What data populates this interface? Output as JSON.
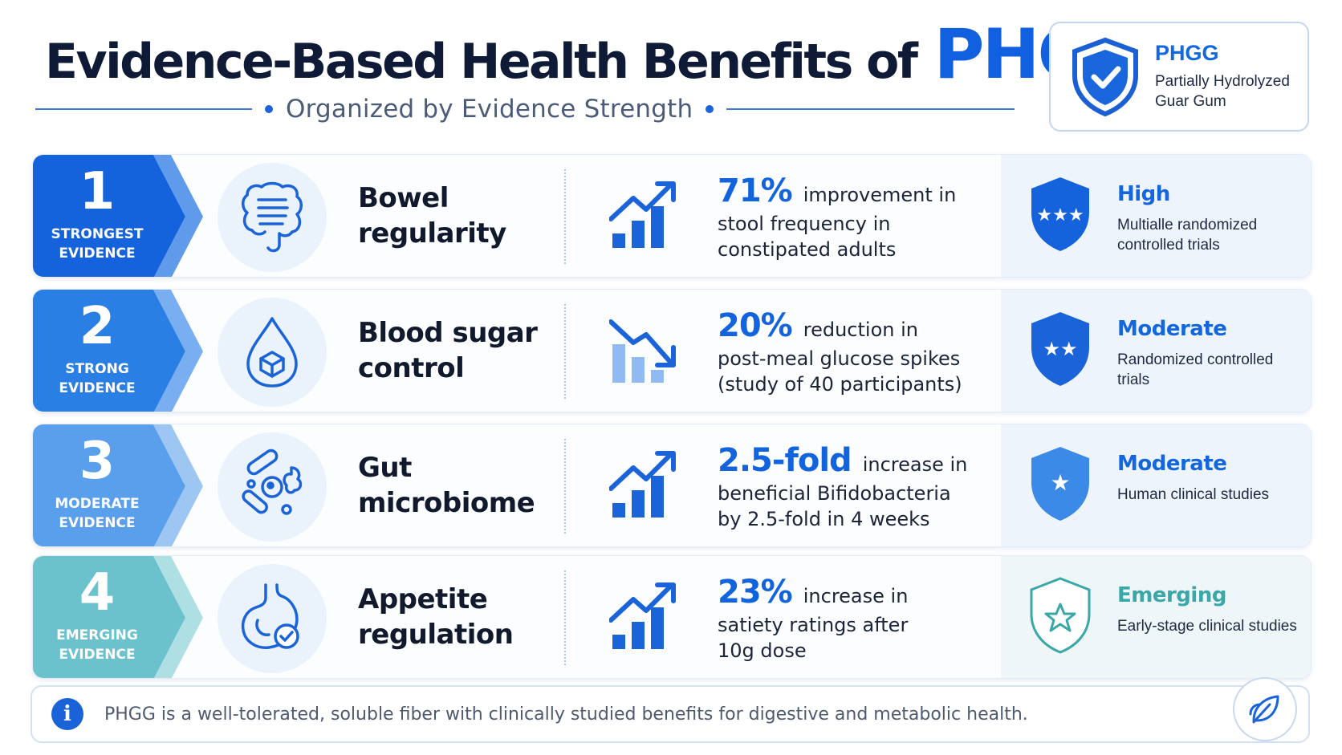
{
  "header": {
    "title_main": "Evidence-Based Health Benefits of",
    "title_accent": "PHGG",
    "subtitle": "Organized by Evidence Strength"
  },
  "badge": {
    "title": "PHGG",
    "subtitle": "Partially Hydrolyzed Guar Gum",
    "icon": "shield-check-icon"
  },
  "rows": [
    {
      "rank": "1",
      "rank_label": "Strongest evidence",
      "color": "#1463dd",
      "icon": "intestine-icon",
      "benefit": "Bowel regularity",
      "trend": "up",
      "stat_big": "71%",
      "stat_rest": "improvement in",
      "stat_body": "stool frequency in\nconstipated adults",
      "level": "High",
      "level_desc": "Multialle randomized controlled trials",
      "stars": 3
    },
    {
      "rank": "2",
      "rank_label": "Strong evidence",
      "color": "#2a7fe4",
      "icon": "glucose-drop-icon",
      "benefit": "Blood sugar control",
      "trend": "down",
      "stat_big": "20%",
      "stat_rest": "reduction in",
      "stat_body": "post-meal glucose spikes\n(study of 40 participants)",
      "level": "Moderate",
      "level_desc": "Randomized controlled trials",
      "stars": 2
    },
    {
      "rank": "3",
      "rank_label": "Moderate evidence",
      "color": "#5a9fec",
      "icon": "microbes-icon",
      "benefit": "Gut microbiome",
      "trend": "up",
      "stat_big": "2.5-fold",
      "stat_rest": "increase in",
      "stat_body": "beneficial Bifidobacteria\nby 2.5-fold in 4 weeks",
      "level": "Moderate",
      "level_desc": "Human clinical studies",
      "stars": 1
    },
    {
      "rank": "4",
      "rank_label": "Emerging evidence",
      "color": "#6cc2cc",
      "icon": "stomach-check-icon",
      "benefit": "Appetite regulation",
      "trend": "up",
      "stat_big": "23%",
      "stat_rest": "increase in",
      "stat_body": "satiety ratings after\n10g dose",
      "level": "Emerging",
      "level_desc": "Early-stage clinical studies",
      "stars": 1
    }
  ],
  "footer": {
    "text": "PHGG is a well-tolerated, soluble fiber with clinically studied benefits for digestive and metabolic health.",
    "info_icon": "info-icon",
    "leaf_icon": "leaf-icon"
  }
}
